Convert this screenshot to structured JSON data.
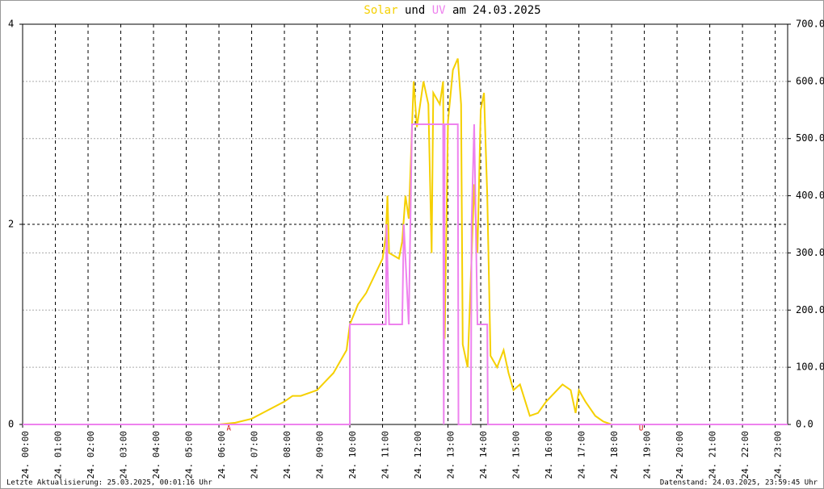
{
  "chart_data": {
    "type": "line",
    "title": [
      "Solar",
      "und",
      "UV",
      "am 24.03.2025"
    ],
    "xlim": [
      0,
      23.38
    ],
    "xticks": [
      {
        "value": 0,
        "label": "24. 00:00"
      },
      {
        "value": 1,
        "label": "24. 01:00"
      },
      {
        "value": 2,
        "label": "24. 02:00"
      },
      {
        "value": 3,
        "label": "24. 03:00"
      },
      {
        "value": 4,
        "label": "24. 04:00"
      },
      {
        "value": 5,
        "label": "24. 05:00"
      },
      {
        "value": 6,
        "label": "24. 06:00"
      },
      {
        "value": 7,
        "label": "24. 07:00"
      },
      {
        "value": 8,
        "label": "24. 08:00"
      },
      {
        "value": 9,
        "label": "24. 09:00"
      },
      {
        "value": 10,
        "label": "24. 10:00"
      },
      {
        "value": 11,
        "label": "24. 11:00"
      },
      {
        "value": 12,
        "label": "24. 12:00"
      },
      {
        "value": 13,
        "label": "24. 13:00"
      },
      {
        "value": 14,
        "label": "24. 14:00"
      },
      {
        "value": 15,
        "label": "24. 15:00"
      },
      {
        "value": 16,
        "label": "24. 16:00"
      },
      {
        "value": 17,
        "label": "24. 17:00"
      },
      {
        "value": 18,
        "label": "24. 18:00"
      },
      {
        "value": 19,
        "label": "24. 19:00"
      },
      {
        "value": 20,
        "label": "24. 20:00"
      },
      {
        "value": 21,
        "label": "24. 21:00"
      },
      {
        "value": 22,
        "label": "24. 22:00"
      },
      {
        "value": 23,
        "label": "24. 23:00"
      }
    ],
    "ylim": [
      0,
      4
    ],
    "yticks": [
      0,
      2,
      4
    ],
    "y2lim": [
      0,
      700
    ],
    "y2ticks": [
      {
        "value": 0,
        "label": "0.0"
      },
      {
        "value": 100,
        "label": "100.0"
      },
      {
        "value": 200,
        "label": "200.0"
      },
      {
        "value": 300,
        "label": "300.0"
      },
      {
        "value": 400,
        "label": "400.0"
      },
      {
        "value": 500,
        "label": "500.0"
      },
      {
        "value": 600,
        "label": "600.0"
      },
      {
        "value": 700,
        "label": "700.0"
      }
    ],
    "grid": true,
    "series": [
      {
        "name": "Solar",
        "color": "#f5d000",
        "axis": "y2",
        "x": [
          0,
          6.0,
          6.5,
          7.0,
          7.5,
          8.0,
          8.25,
          8.5,
          9.0,
          9.25,
          9.5,
          9.75,
          9.9,
          10.0,
          10.25,
          10.5,
          10.75,
          11.0,
          11.1,
          11.15,
          11.2,
          11.5,
          11.6,
          11.7,
          11.8,
          11.95,
          12.05,
          12.25,
          12.4,
          12.5,
          12.55,
          12.75,
          12.85,
          12.9,
          13.0,
          13.15,
          13.3,
          13.4,
          13.45,
          13.6,
          13.8,
          13.9,
          14.0,
          14.1,
          14.2,
          14.3,
          14.5,
          14.7,
          14.85,
          15.0,
          15.2,
          15.5,
          15.75,
          16.0,
          16.25,
          16.5,
          16.75,
          16.9,
          17.0,
          17.2,
          17.5,
          17.75,
          18.0,
          23.38
        ],
        "values": [
          0,
          0,
          3,
          10,
          25,
          40,
          50,
          50,
          60,
          75,
          90,
          115,
          130,
          175,
          210,
          230,
          260,
          290,
          330,
          400,
          300,
          290,
          320,
          400,
          360,
          600,
          520,
          600,
          560,
          300,
          580,
          560,
          600,
          150,
          530,
          620,
          640,
          560,
          140,
          100,
          420,
          300,
          550,
          580,
          400,
          120,
          100,
          130,
          90,
          60,
          70,
          15,
          20,
          40,
          55,
          70,
          60,
          20,
          60,
          40,
          15,
          5,
          0,
          0
        ]
      },
      {
        "name": "UV",
        "color": "#ee82ee",
        "axis": "y",
        "x": [
          0,
          10.0,
          10.0,
          11.1,
          11.12,
          11.2,
          11.6,
          11.65,
          11.8,
          11.9,
          12.85,
          12.87,
          12.9,
          13.3,
          13.32,
          13.7,
          13.72,
          13.8,
          13.9,
          14.2,
          14.22,
          23.38
        ],
        "values": [
          0,
          0,
          1,
          1,
          2,
          1,
          1,
          2,
          1,
          3,
          3,
          0,
          3,
          3,
          0,
          0,
          2,
          3,
          1,
          1,
          0,
          0
        ]
      }
    ],
    "annotations": [
      {
        "text": "A",
        "x": 6.3
      },
      {
        "text": "U",
        "x": 18.9
      }
    ],
    "footer_left": "Letzte Aktualisierung: 25.03.2025, 00:01:16 Uhr",
    "footer_right": "Datenstand: 24.03.2025, 23:59:45 Uhr"
  }
}
